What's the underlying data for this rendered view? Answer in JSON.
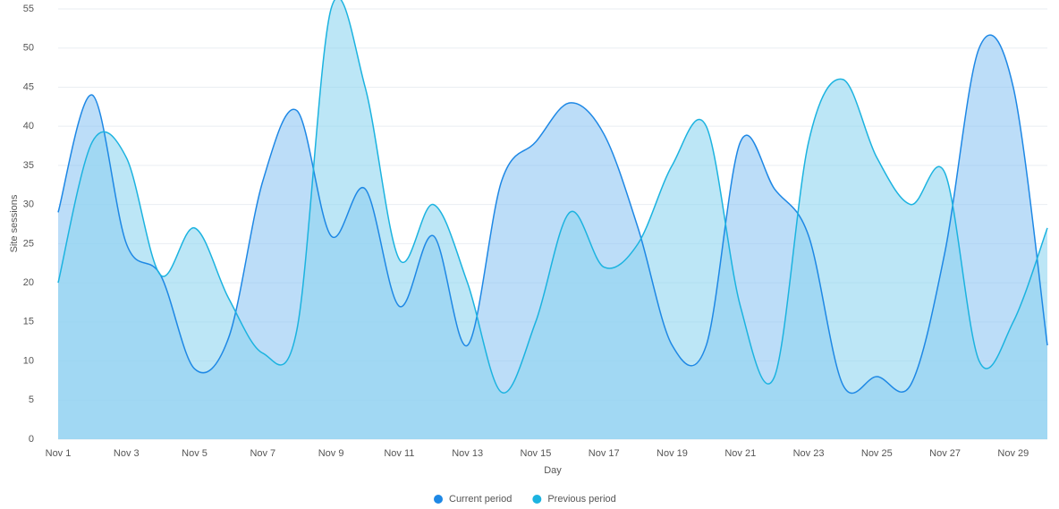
{
  "chart_data": {
    "type": "area",
    "x_label": "Day",
    "y_label": "Site sessions",
    "categories": [
      "Nov 1",
      null,
      "Nov 3",
      null,
      "Nov 5",
      null,
      "Nov 7",
      null,
      "Nov 9",
      null,
      "Nov 11",
      null,
      "Nov 13",
      null,
      "Nov 15",
      null,
      "Nov 17",
      null,
      "Nov 19",
      null,
      "Nov 21",
      null,
      "Nov 23",
      null,
      "Nov 25",
      null,
      "Nov 27",
      null,
      "Nov 29",
      null
    ],
    "series": [
      {
        "name": "Current period",
        "color": "#1e88e5",
        "fill": "#90c6f4",
        "values": [
          29,
          44,
          25,
          21,
          9,
          13,
          33,
          42,
          26,
          32,
          17,
          26,
          12,
          33,
          38,
          43,
          39,
          27,
          12,
          12,
          38,
          32,
          26,
          7,
          8,
          7,
          24,
          50,
          45,
          12
        ]
      },
      {
        "name": "Previous period",
        "color": "#1cb3e0",
        "fill": "#8fd6f0",
        "values": [
          20,
          38,
          36,
          21,
          27,
          18,
          11,
          14,
          55,
          45,
          23,
          30,
          20,
          6,
          15,
          29,
          22,
          25,
          35,
          40,
          17,
          8,
          38,
          46,
          36,
          30,
          34,
          10,
          15,
          27
        ]
      }
    ],
    "ylim": [
      0,
      55
    ],
    "yticks": [
      0,
      5,
      10,
      15,
      20,
      25,
      30,
      35,
      40,
      45,
      50,
      55
    ],
    "grid": true,
    "legend": "bottom"
  }
}
